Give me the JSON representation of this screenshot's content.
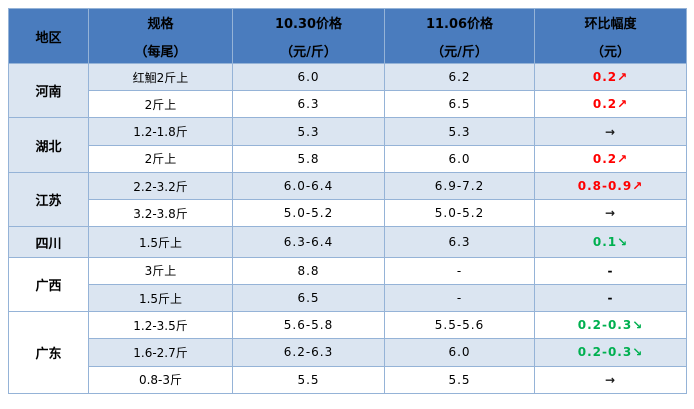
{
  "chart_data": {
    "type": "table",
    "title": "",
    "columns": [
      "地区",
      "规格（每尾）",
      "10.30价格（元/斤）",
      "11.06价格（元/斤）",
      "环比幅度（元）"
    ],
    "headers": [
      {
        "title": "地区",
        "sub": ""
      },
      {
        "title": "规格",
        "sub": "（每尾）"
      },
      {
        "title": "10.30价格",
        "sub": "（元/斤）"
      },
      {
        "title": "11.06价格",
        "sub": "（元/斤）"
      },
      {
        "title": "环比幅度",
        "sub": "（元）"
      }
    ],
    "rows": [
      {
        "region": "河南",
        "region_rowspan": "2",
        "spec": "红鮰2斤上",
        "price_1030": "6.0",
        "price_1106": "6.2",
        "change": "0.2↗",
        "trend": "up"
      },
      {
        "spec": "2斤上",
        "price_1030": "6.3",
        "price_1106": "6.5",
        "change": "0.2↗",
        "trend": "up"
      },
      {
        "region": "湖北",
        "region_rowspan": "2",
        "spec": "1.2-1.8斤",
        "price_1030": "5.3",
        "price_1106": "5.3",
        "change": "→",
        "trend": "flat"
      },
      {
        "spec": "2斤上",
        "price_1030": "5.8",
        "price_1106": "6.0",
        "change": "0.2↗",
        "trend": "up"
      },
      {
        "region": "江苏",
        "region_rowspan": "2",
        "spec": "2.2-3.2斤",
        "price_1030": "6.0-6.4",
        "price_1106": "6.9-7.2",
        "change": "0.8-0.9↗",
        "trend": "up"
      },
      {
        "spec": "3.2-3.8斤",
        "price_1030": "5.0-5.2",
        "price_1106": "5.0-5.2",
        "change": "→",
        "trend": "flat"
      },
      {
        "region": "四川",
        "region_rowspan": "1",
        "spec": "1.5斤上",
        "price_1030": "6.3-6.4",
        "price_1106": "6.3",
        "change": "0.1↘",
        "trend": "down"
      },
      {
        "region": "广西",
        "region_rowspan": "2",
        "spec": "3斤上",
        "price_1030": "8.8",
        "price_1106": "-",
        "change": "-",
        "trend": "none"
      },
      {
        "spec": "1.5斤上",
        "price_1030": "6.5",
        "price_1106": "-",
        "change": "-",
        "trend": "none"
      },
      {
        "region": "广东",
        "region_rowspan": "3",
        "spec": "1.2-3.5斤",
        "price_1030": "5.6-5.8",
        "price_1106": "5.5-5.6",
        "change": "0.2-0.3↘",
        "trend": "down"
      },
      {
        "spec": "1.6-2.7斤",
        "price_1030": "6.2-6.3",
        "price_1106": "6.0",
        "change": "0.2-0.3↘",
        "trend": "down"
      },
      {
        "spec": "0.8-3斤",
        "price_1030": "5.5",
        "price_1106": "5.5",
        "change": "→",
        "trend": "flat"
      }
    ]
  },
  "colors": {
    "header_bg": "#4a7cbe",
    "row_alt_bg": "#dbe5f1",
    "border": "#95b3d7",
    "up_red": "#ff0000",
    "down_green": "#00b050",
    "text": "#000000"
  }
}
